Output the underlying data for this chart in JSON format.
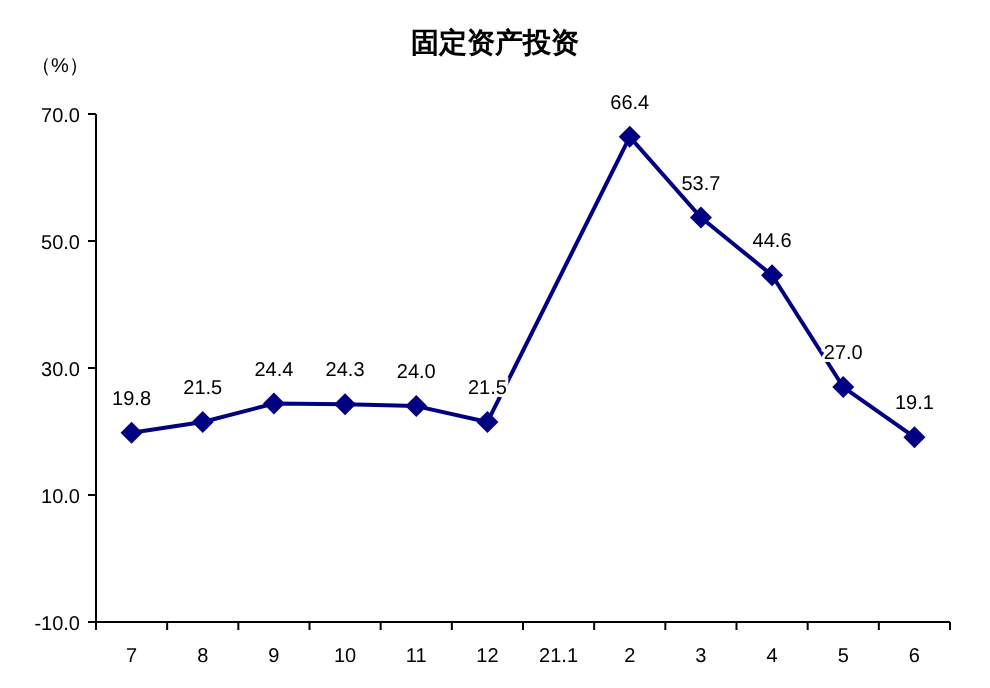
{
  "chart_data": {
    "type": "line",
    "title": "固定资产投资",
    "ylabel": "（%）",
    "categories": [
      "7",
      "8",
      "9",
      "10",
      "11",
      "12",
      "21.1",
      "2",
      "3",
      "4",
      "5",
      "6"
    ],
    "series": [
      {
        "color": "#000080",
        "values": [
          19.8,
          21.5,
          24.4,
          24.3,
          24.0,
          21.5,
          null,
          66.4,
          53.7,
          44.6,
          27.0,
          19.1
        ],
        "value_labels": [
          "19.8",
          "21.5",
          "24.4",
          "24.3",
          "24.0",
          "21.5",
          null,
          "66.4",
          "53.7",
          "44.6",
          "27.0",
          "19.1"
        ]
      }
    ],
    "ylim": [
      -10,
      70
    ],
    "yticks": [
      {
        "value": -10,
        "label": "-10.0"
      },
      {
        "value": 10,
        "label": "10.0"
      },
      {
        "value": 30,
        "label": "30.0"
      },
      {
        "value": 50,
        "label": "50.0"
      },
      {
        "value": 70,
        "label": "70.0"
      }
    ],
    "marker": "diamond",
    "line_style": "solid",
    "grid": false
  }
}
